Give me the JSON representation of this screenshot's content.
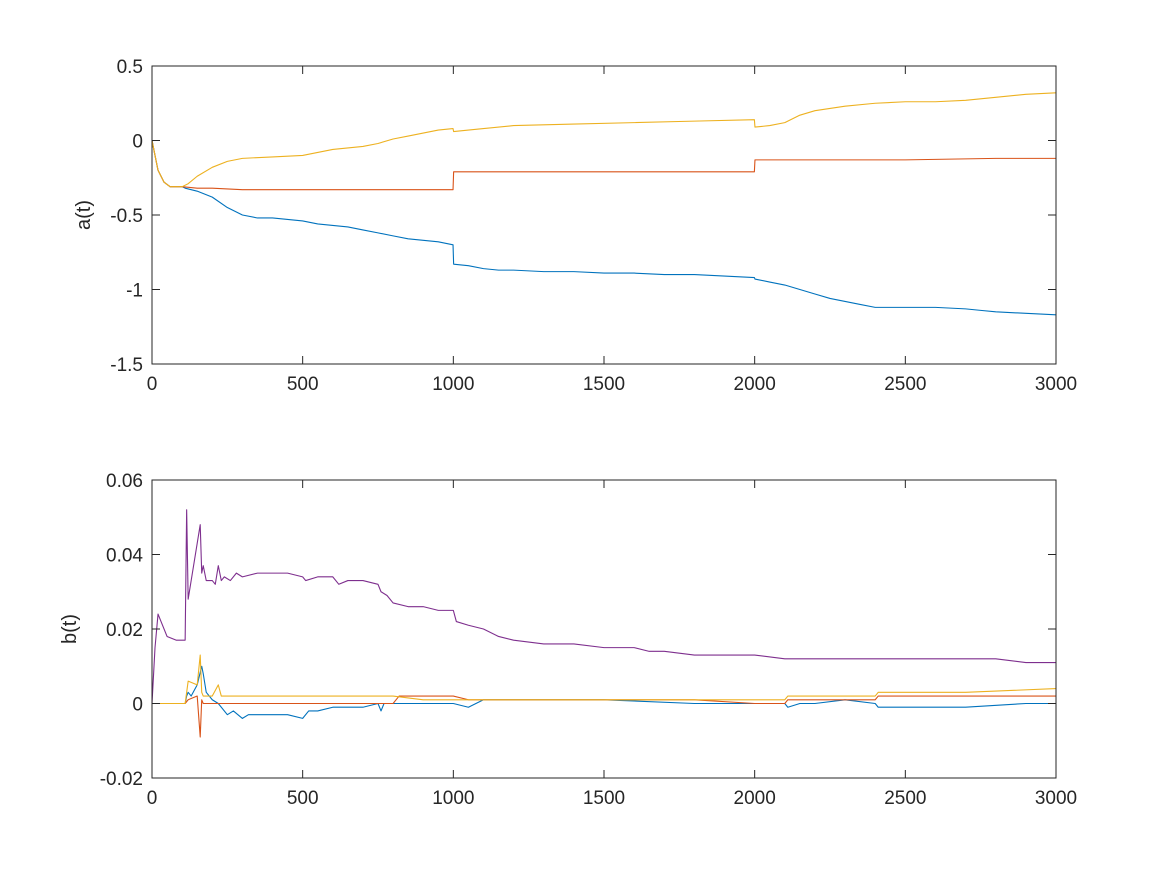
{
  "chart_data": [
    {
      "type": "line",
      "title": "",
      "xlabel": "",
      "ylabel": "a(t)",
      "xlim": [
        0,
        3000
      ],
      "ylim": [
        -1.5,
        0.5
      ],
      "xticks": [
        0,
        500,
        1000,
        1500,
        2000,
        2500,
        3000
      ],
      "yticks": [
        -1.5,
        -1,
        -0.5,
        0,
        0.5
      ],
      "xtick_labels": [
        "0",
        "500",
        "1000",
        "1500",
        "2000",
        "2500",
        "3000"
      ],
      "ytick_labels": [
        "-1.5",
        "-1",
        "-0.5",
        "0",
        "0.5"
      ],
      "grid": false,
      "legend": "none",
      "series": [
        {
          "color": "#0072BD",
          "x": [
            0,
            20,
            40,
            60,
            80,
            100,
            110,
            150,
            200,
            250,
            300,
            350,
            400,
            450,
            500,
            550,
            600,
            650,
            700,
            750,
            800,
            850,
            900,
            950,
            999,
            1001,
            1050,
            1100,
            1150,
            1200,
            1300,
            1400,
            1500,
            1600,
            1700,
            1800,
            1900,
            1999,
            2001,
            2050,
            2100,
            2150,
            2200,
            2250,
            2300,
            2350,
            2400,
            2500,
            2600,
            2700,
            2750,
            2800,
            2900,
            3000
          ],
          "y": [
            0,
            -0.2,
            -0.28,
            -0.31,
            -0.31,
            -0.31,
            -0.32,
            -0.34,
            -0.38,
            -0.45,
            -0.5,
            -0.52,
            -0.52,
            -0.53,
            -0.54,
            -0.56,
            -0.57,
            -0.58,
            -0.6,
            -0.62,
            -0.64,
            -0.66,
            -0.67,
            -0.68,
            -0.7,
            -0.83,
            -0.84,
            -0.86,
            -0.87,
            -0.87,
            -0.88,
            -0.88,
            -0.89,
            -0.89,
            -0.9,
            -0.9,
            -0.91,
            -0.92,
            -0.93,
            -0.95,
            -0.97,
            -1.0,
            -1.03,
            -1.06,
            -1.08,
            -1.1,
            -1.12,
            -1.12,
            -1.12,
            -1.13,
            -1.14,
            -1.15,
            -1.16,
            -1.17
          ]
        },
        {
          "color": "#D95319",
          "x": [
            0,
            20,
            40,
            60,
            80,
            100,
            150,
            200,
            300,
            400,
            500,
            700,
            900,
            999,
            1001,
            1200,
            1500,
            1800,
            1999,
            2001,
            2200,
            2500,
            2800,
            3000
          ],
          "y": [
            0,
            -0.2,
            -0.28,
            -0.31,
            -0.31,
            -0.31,
            -0.32,
            -0.32,
            -0.33,
            -0.33,
            -0.33,
            -0.33,
            -0.33,
            -0.33,
            -0.21,
            -0.21,
            -0.21,
            -0.21,
            -0.21,
            -0.13,
            -0.13,
            -0.13,
            -0.12,
            -0.12
          ]
        },
        {
          "color": "#EDB120",
          "x": [
            0,
            20,
            40,
            60,
            80,
            100,
            120,
            150,
            200,
            250,
            300,
            400,
            500,
            550,
            600,
            700,
            750,
            800,
            850,
            900,
            950,
            999,
            1001,
            1050,
            1100,
            1200,
            1400,
            1600,
            1800,
            1999,
            2001,
            2050,
            2100,
            2150,
            2200,
            2300,
            2400,
            2500,
            2600,
            2700,
            2800,
            2900,
            3000
          ],
          "y": [
            0,
            -0.2,
            -0.28,
            -0.31,
            -0.31,
            -0.31,
            -0.29,
            -0.24,
            -0.18,
            -0.14,
            -0.12,
            -0.11,
            -0.1,
            -0.08,
            -0.06,
            -0.04,
            -0.02,
            0.01,
            0.03,
            0.05,
            0.07,
            0.08,
            0.06,
            0.07,
            0.08,
            0.1,
            0.11,
            0.12,
            0.13,
            0.14,
            0.09,
            0.1,
            0.12,
            0.17,
            0.2,
            0.23,
            0.25,
            0.26,
            0.26,
            0.27,
            0.29,
            0.31,
            0.32
          ]
        }
      ]
    },
    {
      "type": "line",
      "title": "",
      "xlabel": "",
      "ylabel": "b(t)",
      "xlim": [
        0,
        3000
      ],
      "ylim": [
        -0.02,
        0.06
      ],
      "xticks": [
        0,
        500,
        1000,
        1500,
        2000,
        2500,
        3000
      ],
      "yticks": [
        -0.02,
        0,
        0.02,
        0.04,
        0.06
      ],
      "xtick_labels": [
        "0",
        "500",
        "1000",
        "1500",
        "2000",
        "2500",
        "3000"
      ],
      "ytick_labels": [
        "-0.02",
        "0",
        "0.02",
        "0.04",
        "0.06"
      ],
      "grid": false,
      "legend": "none",
      "series": [
        {
          "color": "#7E2F8E",
          "x": [
            0,
            10,
            20,
            30,
            50,
            80,
            110,
            115,
            120,
            130,
            150,
            160,
            165,
            170,
            180,
            200,
            210,
            220,
            230,
            240,
            260,
            280,
            300,
            350,
            400,
            450,
            500,
            510,
            550,
            600,
            620,
            650,
            700,
            750,
            760,
            780,
            800,
            850,
            900,
            950,
            1000,
            1010,
            1050,
            1100,
            1150,
            1200,
            1300,
            1400,
            1500,
            1600,
            1650,
            1700,
            1800,
            1900,
            2000,
            2100,
            2150,
            2200,
            2300,
            2400,
            2500,
            2600,
            2700,
            2800,
            2900,
            3000
          ],
          "y": [
            0,
            0.015,
            0.024,
            0.022,
            0.018,
            0.017,
            0.017,
            0.052,
            0.028,
            0.033,
            0.043,
            0.048,
            0.035,
            0.037,
            0.033,
            0.033,
            0.032,
            0.037,
            0.033,
            0.034,
            0.033,
            0.035,
            0.034,
            0.035,
            0.035,
            0.035,
            0.034,
            0.033,
            0.034,
            0.034,
            0.032,
            0.033,
            0.033,
            0.032,
            0.03,
            0.029,
            0.027,
            0.026,
            0.026,
            0.025,
            0.025,
            0.022,
            0.021,
            0.02,
            0.018,
            0.017,
            0.016,
            0.016,
            0.015,
            0.015,
            0.014,
            0.014,
            0.013,
            0.013,
            0.013,
            0.012,
            0.012,
            0.012,
            0.012,
            0.012,
            0.012,
            0.012,
            0.012,
            0.012,
            0.011,
            0.011
          ]
        },
        {
          "color": "#0072BD",
          "x": [
            0,
            50,
            110,
            115,
            120,
            130,
            150,
            165,
            170,
            180,
            200,
            220,
            250,
            270,
            300,
            320,
            350,
            400,
            450,
            500,
            520,
            550,
            600,
            700,
            750,
            760,
            770,
            800,
            900,
            1000,
            1050,
            1100,
            1200,
            1500,
            1800,
            2000,
            2050,
            2100,
            2110,
            2150,
            2200,
            2300,
            2400,
            2410,
            2500,
            2700,
            2900,
            3000
          ],
          "y": [
            0,
            0,
            0,
            0.002,
            0.003,
            0.002,
            0.005,
            0.01,
            0.008,
            0.003,
            0.001,
            0,
            -0.003,
            -0.002,
            -0.004,
            -0.003,
            -0.003,
            -0.003,
            -0.003,
            -0.004,
            -0.002,
            -0.002,
            -0.001,
            -0.001,
            0,
            -0.002,
            0,
            0,
            0,
            0,
            -0.001,
            0.001,
            0.001,
            0.001,
            0,
            0,
            0,
            0,
            -0.001,
            0,
            0,
            0.001,
            0,
            -0.001,
            -0.001,
            -0.001,
            0,
            0
          ]
        },
        {
          "color": "#D95319",
          "x": [
            0,
            50,
            110,
            120,
            150,
            160,
            165,
            170,
            200,
            300,
            500,
            700,
            800,
            820,
            900,
            1000,
            1050,
            1200,
            1500,
            1800,
            2000,
            2100,
            2110,
            2400,
            2410,
            2700,
            3000
          ],
          "y": [
            0,
            0,
            0,
            0.001,
            0.002,
            -0.009,
            0.001,
            0,
            0,
            0,
            0,
            0,
            0,
            0.002,
            0.002,
            0.002,
            0.001,
            0.001,
            0.001,
            0.001,
            0,
            0,
            0.001,
            0.001,
            0.002,
            0.002,
            0.002
          ]
        },
        {
          "color": "#EDB120",
          "x": [
            0,
            50,
            110,
            120,
            150,
            160,
            165,
            170,
            200,
            220,
            230,
            250,
            300,
            500,
            700,
            800,
            900,
            1000,
            1200,
            1500,
            1800,
            2000,
            2100,
            2110,
            2400,
            2410,
            2700,
            3000
          ],
          "y": [
            0,
            0,
            0,
            0.006,
            0.005,
            0.013,
            0.003,
            0.002,
            0.002,
            0.005,
            0.002,
            0.002,
            0.002,
            0.002,
            0.002,
            0.002,
            0.001,
            0.001,
            0.001,
            0.001,
            0.001,
            0.001,
            0.001,
            0.002,
            0.002,
            0.003,
            0.003,
            0.004
          ]
        }
      ]
    }
  ]
}
